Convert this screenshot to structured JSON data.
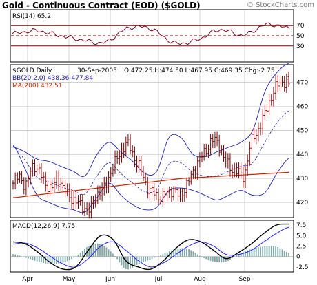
{
  "header": {
    "title": "Gold - Continuous Contract (EOD) ($GOLD)",
    "credit": "© StockCharts.com"
  },
  "rsi_panel": {
    "label": "RSI(14) 65.2",
    "levels": [
      {
        "label": "70",
        "value": 70
      },
      {
        "label": "50",
        "value": 50
      },
      {
        "label": "30",
        "value": 30
      }
    ]
  },
  "price_panel": {
    "symbol_label": "$GOLD Daily",
    "quote_date": "30-Sep-2005",
    "quote_line": "O:472.25 H:474.50 L:467.95 C:469.35 Chg:-2.75",
    "bb_label": "BB(20,2.0) 438.36-477.84",
    "ma_label": "MA(200) 432.51",
    "y_ticks": [
      "470",
      "460",
      "450",
      "440",
      "430",
      "420"
    ]
  },
  "macd_panel": {
    "label": "MACD(12,26,9) 7.75",
    "y_ticks": [
      "7.5",
      "5.0",
      "2.5",
      "0",
      "-2.5"
    ]
  },
  "x_axis": {
    "month_labels": [
      "Apr",
      "May",
      "Jun",
      "Jul",
      "Aug",
      "Sep"
    ]
  },
  "colors": {
    "bar": "#800000",
    "bollinger": "#2020b0",
    "moving_average": "#cc2200",
    "rsi_line": "#800020",
    "rsi_levels": "#800000",
    "macd_line": "#000000",
    "signal_line": "#2020ff",
    "histogram": "#80a8a8",
    "grid": "#b8b8b8"
  },
  "chart_data": [
    {
      "type": "line",
      "name": "RSI(14)",
      "x": [
        "Apr",
        "Apr",
        "May",
        "May",
        "Jun",
        "Jun",
        "Jul",
        "Jul",
        "Aug",
        "Aug",
        "Sep",
        "Sep",
        "Sep"
      ],
      "ylim": [
        0,
        100
      ],
      "rsi_values": [
        54,
        60,
        51,
        42,
        37,
        65,
        64,
        36,
        42,
        62,
        51,
        72,
        65.2
      ],
      "levels": [
        70,
        50,
        30
      ]
    },
    {
      "type": "line",
      "title": "$GOLD Daily",
      "ylim": [
        414,
        477
      ],
      "close_values": [
        428,
        431,
        427,
        435,
        433,
        428,
        426,
        430,
        425,
        422,
        420,
        418,
        417,
        423,
        425,
        431,
        437,
        442,
        444,
        438,
        433,
        426,
        424,
        422,
        424,
        425,
        423,
        427,
        432,
        438,
        441,
        446,
        444,
        438,
        434,
        433,
        431,
        444,
        449,
        455,
        462,
        468,
        470,
        469.35
      ],
      "ma200_values": [
        422,
        423,
        424,
        425,
        426,
        427,
        428,
        429,
        430,
        430.5,
        431,
        431.5,
        432,
        432.51
      ],
      "bb_upper": [
        443,
        441,
        438,
        437,
        435,
        433,
        431,
        440,
        445,
        441,
        437,
        432,
        433,
        447,
        447,
        440,
        439,
        441,
        443,
        445,
        450,
        466,
        474,
        477.84
      ],
      "bb_lower": [
        444,
        434,
        423,
        420,
        418,
        417,
        416,
        422,
        428,
        423,
        419,
        417,
        418,
        425,
        426,
        425,
        423,
        421,
        423,
        425,
        423,
        424,
        432,
        438.36
      ],
      "last": {
        "open": 472.25,
        "high": 474.5,
        "low": 467.95,
        "close": 469.35,
        "change": -2.75
      }
    },
    {
      "type": "line",
      "title": "MACD(12,26,9)",
      "ylim": [
        -3.5,
        8.5
      ],
      "macd": [
        3.5,
        3.0,
        1.0,
        -1.5,
        -3.0,
        -2.5,
        1.5,
        5.0,
        4.0,
        -1.0,
        -2.5,
        -3.0,
        -1.0,
        2.0,
        4.0,
        3.5,
        1.5,
        -0.5,
        1.0,
        3.0,
        5.5,
        7.5,
        7.75
      ],
      "signal": [
        3.0,
        3.2,
        2.0,
        0.0,
        -1.8,
        -2.5,
        -0.5,
        2.5,
        3.5,
        1.5,
        -1.0,
        -2.5,
        -1.5,
        0.5,
        2.5,
        3.5,
        2.5,
        0.5,
        0.5,
        1.5,
        3.5,
        5.5,
        7.0
      ]
    }
  ]
}
